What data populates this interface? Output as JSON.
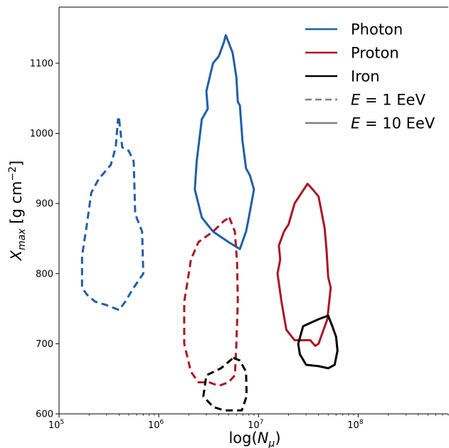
{
  "chart_data": {
    "type": "line",
    "subtype": "contour",
    "title": "",
    "xlabel": "log(N_μ)",
    "ylabel": "X_max [g cm⁻²]",
    "xscale": "log",
    "xlim": [
      100000,
      800000000
    ],
    "ylim": [
      600,
      1180
    ],
    "grid": false,
    "legend_placement": "top-right",
    "xticks": [
      {
        "value": 100000,
        "base": "10",
        "exp": "5"
      },
      {
        "value": 1000000,
        "base": "10",
        "exp": "6"
      },
      {
        "value": 10000000,
        "base": "10",
        "exp": "7"
      },
      {
        "value": 100000000,
        "base": "10",
        "exp": "8"
      }
    ],
    "yticks": [
      {
        "value": 600,
        "label": "600"
      },
      {
        "value": 700,
        "label": "700"
      },
      {
        "value": 800,
        "label": "800"
      },
      {
        "value": 900,
        "label": "900"
      },
      {
        "value": 1000,
        "label": "1000"
      },
      {
        "value": 1100,
        "label": "1100"
      }
    ],
    "colors": {
      "photon": "#1f5fa9",
      "proton": "#ab1622",
      "iron": "#000000",
      "energy_legend": "#808080"
    },
    "legend": [
      {
        "label": "Photon",
        "color": "#1f5fa9",
        "dash": false
      },
      {
        "label": "Proton",
        "color": "#ab1622",
        "dash": false
      },
      {
        "label": "Iron",
        "color": "#000000",
        "dash": false
      },
      {
        "label": "E = 1 EeV",
        "color": "#808080",
        "dash": true
      },
      {
        "label": "E = 10 EeV",
        "color": "#808080",
        "dash": false
      }
    ],
    "series": [
      {
        "primary": "photon",
        "energy_eev": 1,
        "dash": true,
        "color": "#1f5fa9",
        "points": [
          [
            400000,
            1020
          ],
          [
            430000,
            980
          ],
          [
            500000,
            975
          ],
          [
            560000,
            960
          ],
          [
            580000,
            885
          ],
          [
            680000,
            860
          ],
          [
            700000,
            800
          ],
          [
            560000,
            780
          ],
          [
            460000,
            760
          ],
          [
            400000,
            748
          ],
          [
            300000,
            755
          ],
          [
            230000,
            760
          ],
          [
            190000,
            770
          ],
          [
            170000,
            780
          ],
          [
            170000,
            825
          ],
          [
            190000,
            870
          ],
          [
            210000,
            915
          ],
          [
            250000,
            935
          ],
          [
            330000,
            955
          ],
          [
            370000,
            980
          ],
          [
            390000,
            1020
          ]
        ]
      },
      {
        "primary": "photon",
        "energy_eev": 10,
        "dash": false,
        "color": "#1f5fa9",
        "points": [
          [
            4700000,
            1140
          ],
          [
            5500000,
            1115
          ],
          [
            6000000,
            1080
          ],
          [
            6200000,
            1045
          ],
          [
            6500000,
            1040
          ],
          [
            6900000,
            990
          ],
          [
            7500000,
            950
          ],
          [
            8200000,
            940
          ],
          [
            9000000,
            920
          ],
          [
            8000000,
            880
          ],
          [
            7500000,
            860
          ],
          [
            6500000,
            835
          ],
          [
            5000000,
            845
          ],
          [
            3500000,
            860
          ],
          [
            2700000,
            880
          ],
          [
            2300000,
            920
          ],
          [
            2400000,
            960
          ],
          [
            2700000,
            1020
          ],
          [
            3100000,
            1035
          ],
          [
            3000000,
            1060
          ],
          [
            3500000,
            1100
          ],
          [
            4000000,
            1110
          ],
          [
            4500000,
            1130
          ],
          [
            4700000,
            1140
          ]
        ]
      },
      {
        "primary": "proton",
        "energy_eev": 1,
        "dash": true,
        "color": "#ab1622",
        "points": [
          [
            5100000,
            880
          ],
          [
            5800000,
            860
          ],
          [
            6100000,
            815
          ],
          [
            6200000,
            760
          ],
          [
            6000000,
            700
          ],
          [
            5800000,
            655
          ],
          [
            5000000,
            645
          ],
          [
            4000000,
            640
          ],
          [
            3200000,
            645
          ],
          [
            2500000,
            645
          ],
          [
            2100000,
            660
          ],
          [
            1800000,
            700
          ],
          [
            1800000,
            760
          ],
          [
            2000000,
            800
          ],
          [
            2100000,
            820
          ],
          [
            2500000,
            845
          ],
          [
            3500000,
            860
          ],
          [
            4500000,
            875
          ],
          [
            5100000,
            880
          ]
        ]
      },
      {
        "primary": "proton",
        "energy_eev": 10,
        "dash": false,
        "color": "#ab1622",
        "points": [
          [
            31000000,
            928
          ],
          [
            35000000,
            920
          ],
          [
            40000000,
            910
          ],
          [
            46000000,
            865
          ],
          [
            48000000,
            835
          ],
          [
            50000000,
            795
          ],
          [
            53000000,
            780
          ],
          [
            49000000,
            735
          ],
          [
            40000000,
            700
          ],
          [
            37000000,
            697
          ],
          [
            33000000,
            705
          ],
          [
            23000000,
            705
          ],
          [
            19000000,
            720
          ],
          [
            17000000,
            760
          ],
          [
            15500000,
            800
          ],
          [
            16500000,
            820
          ],
          [
            16000000,
            840
          ],
          [
            18000000,
            860
          ],
          [
            20000000,
            870
          ],
          [
            23000000,
            900
          ],
          [
            27000000,
            915
          ],
          [
            31000000,
            928
          ]
        ]
      },
      {
        "primary": "iron",
        "energy_eev": 1,
        "dash": true,
        "color": "#000000",
        "points": [
          [
            5600000,
            680
          ],
          [
            6500000,
            676
          ],
          [
            7500000,
            660
          ],
          [
            7600000,
            625
          ],
          [
            6800000,
            605
          ],
          [
            4500000,
            605
          ],
          [
            3500000,
            610
          ],
          [
            2800000,
            625
          ],
          [
            3000000,
            655
          ],
          [
            4200000,
            665
          ],
          [
            5600000,
            680
          ]
        ]
      },
      {
        "primary": "iron",
        "energy_eev": 10,
        "dash": false,
        "color": "#000000",
        "points": [
          [
            50000000,
            740
          ],
          [
            55000000,
            725
          ],
          [
            60000000,
            710
          ],
          [
            62000000,
            690
          ],
          [
            58000000,
            670
          ],
          [
            50000000,
            665
          ],
          [
            40000000,
            668
          ],
          [
            30000000,
            670
          ],
          [
            26000000,
            685
          ],
          [
            25000000,
            700
          ],
          [
            28000000,
            725
          ],
          [
            40000000,
            735
          ],
          [
            50000000,
            740
          ]
        ]
      }
    ]
  }
}
